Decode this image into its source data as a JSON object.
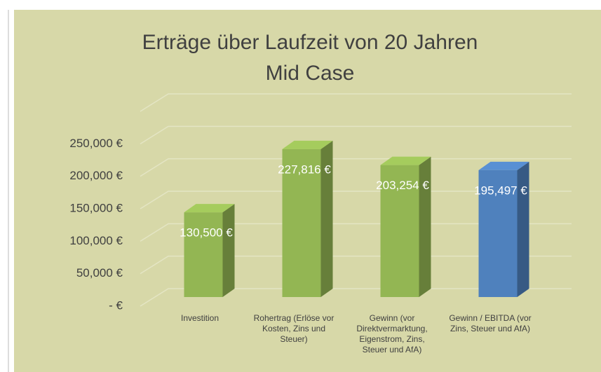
{
  "chart_data": {
    "type": "bar3d",
    "title": "Erträge über Laufzeit von 20 Jahren",
    "subtitle": "Mid Case",
    "categories": [
      "Investition",
      "Rohertrag (Erlöse vor Kosten, Zins und Steuer)",
      "Gewinn (vor Direktvermarktung, Eigenstrom, Zins, Steuer und AfA)",
      "Gewinn / EBITDA (vor Zins, Steuer und AfA)"
    ],
    "values": [
      130500,
      227816,
      203254,
      195497
    ],
    "value_labels": [
      "130,500 €",
      "227,816 €",
      "203,254 €",
      "195,497 €"
    ],
    "colors": [
      "#93b653",
      "#93b653",
      "#93b653",
      "#4f81bd"
    ],
    "ylim": [
      0,
      300000
    ],
    "yticks": [
      {
        "value": 0,
        "label": "- €"
      },
      {
        "value": 50000,
        "label": "50,000 €"
      },
      {
        "value": 100000,
        "label": "100,000 €"
      },
      {
        "value": 150000,
        "label": "150,000 €"
      },
      {
        "value": 200000,
        "label": "200,000 €"
      },
      {
        "value": 250000,
        "label": "250,000 €"
      }
    ],
    "grid": true
  }
}
